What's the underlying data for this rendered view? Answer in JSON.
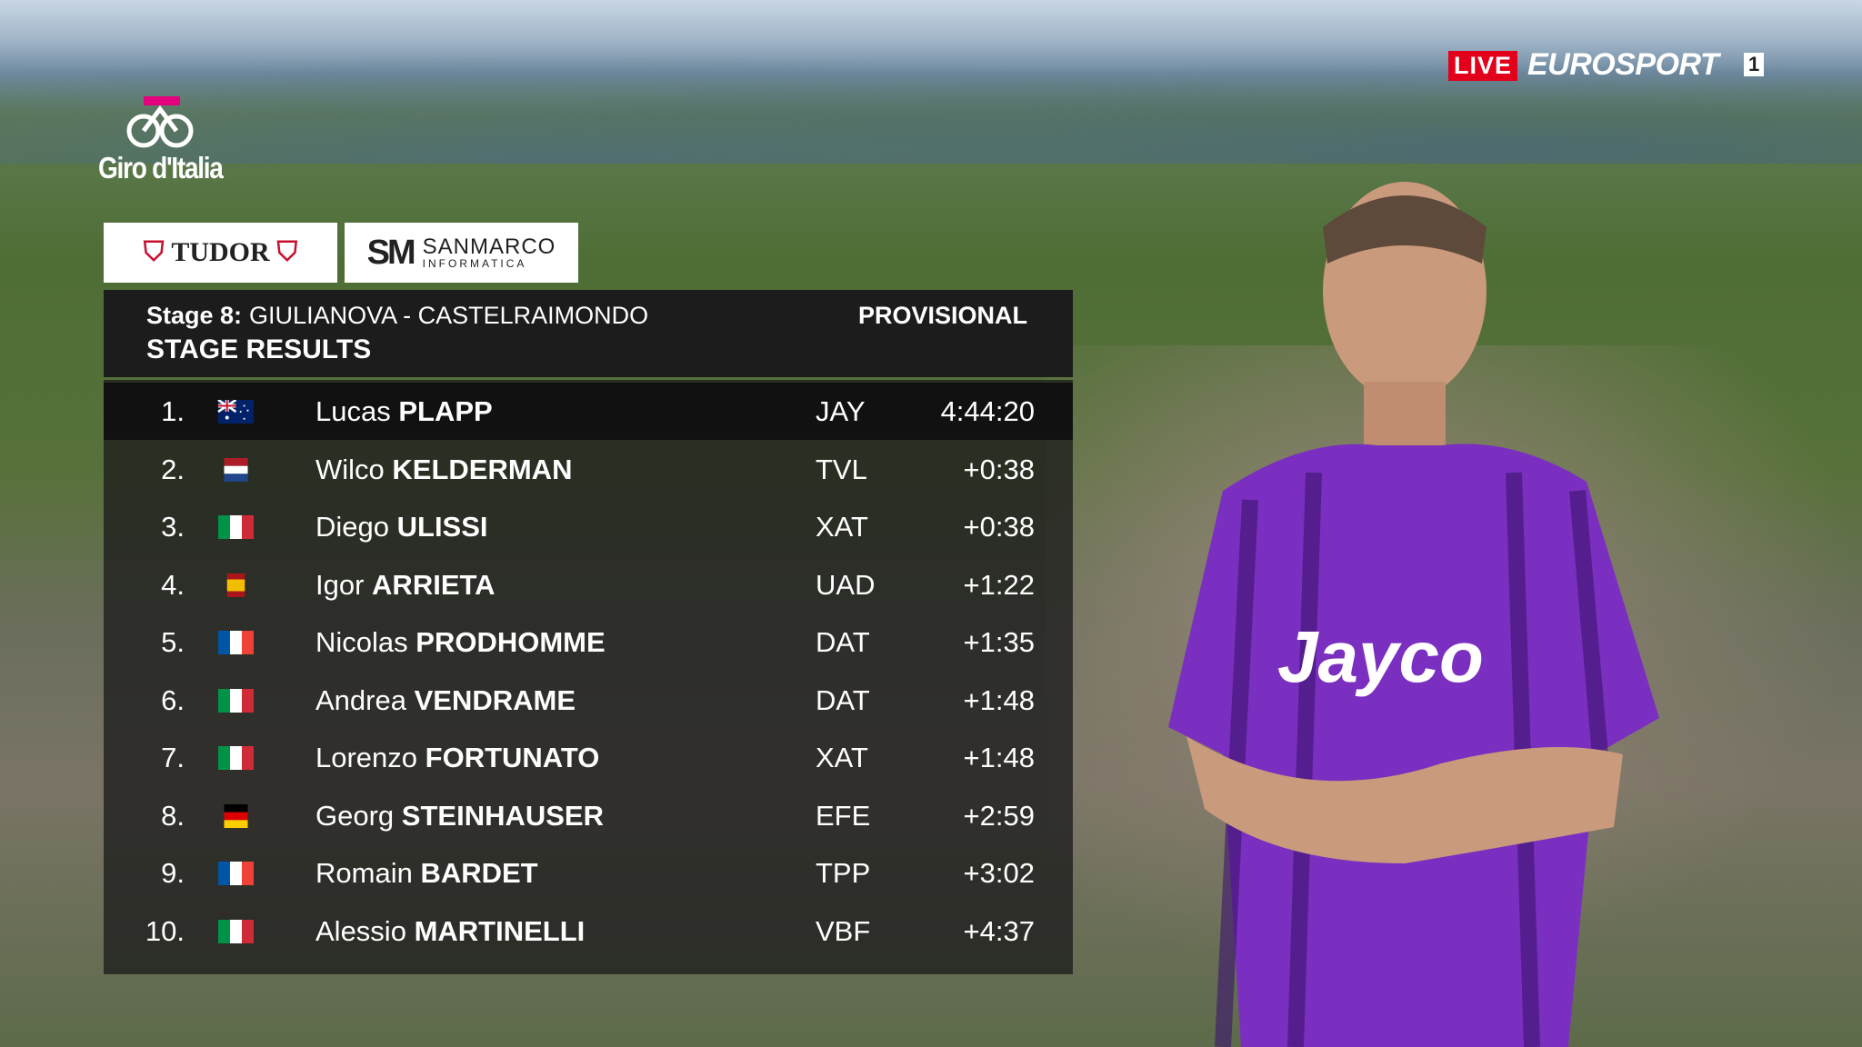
{
  "broadcaster": {
    "live": "LIVE",
    "channel": "EUROSPORT",
    "channel_number": "1"
  },
  "event": {
    "logo_text": "Giro d'Italia",
    "sponsors": [
      "TUDOR",
      "SANMARCO",
      "INFORMATICA"
    ]
  },
  "header": {
    "stage": "Stage 8:",
    "route": "GIULIANOVA - CASTELRAIMONDO",
    "status": "PROVISIONAL",
    "title": "STAGE RESULTS"
  },
  "table": {
    "rows": [
      {
        "rank": "1.",
        "first": "Lucas",
        "last": "PLAPP",
        "team": "JAY",
        "time": "4:44:20"
      },
      {
        "rank": "2.",
        "first": "Wilco",
        "last": "KELDERMAN",
        "team": "TVL",
        "time": "+0:38"
      },
      {
        "rank": "3.",
        "first": "Diego",
        "last": "ULISSI",
        "team": "XAT",
        "time": "+0:38"
      },
      {
        "rank": "4.",
        "first": "Igor",
        "last": "ARRIETA",
        "team": "UAD",
        "time": "+1:22"
      },
      {
        "rank": "5.",
        "first": "Nicolas",
        "last": "PRODHOMME",
        "team": "DAT",
        "time": "+1:35"
      },
      {
        "rank": "6.",
        "first": "Andrea",
        "last": "VENDRAME",
        "team": "DAT",
        "time": "+1:48"
      },
      {
        "rank": "7.",
        "first": "Lorenzo",
        "last": "FORTUNATO",
        "team": "XAT",
        "time": "+1:48"
      },
      {
        "rank": "8.",
        "first": "Georg",
        "last": "STEINHAUSER",
        "team": "EFE",
        "time": "+2:59"
      },
      {
        "rank": "9.",
        "first": "Romain",
        "last": "BARDET",
        "team": "TPP",
        "time": "+3:02"
      },
      {
        "rank": "10.",
        "first": "Alessio",
        "last": "MARTINELLI",
        "team": "VBF",
        "time": "+4:37"
      }
    ]
  }
}
